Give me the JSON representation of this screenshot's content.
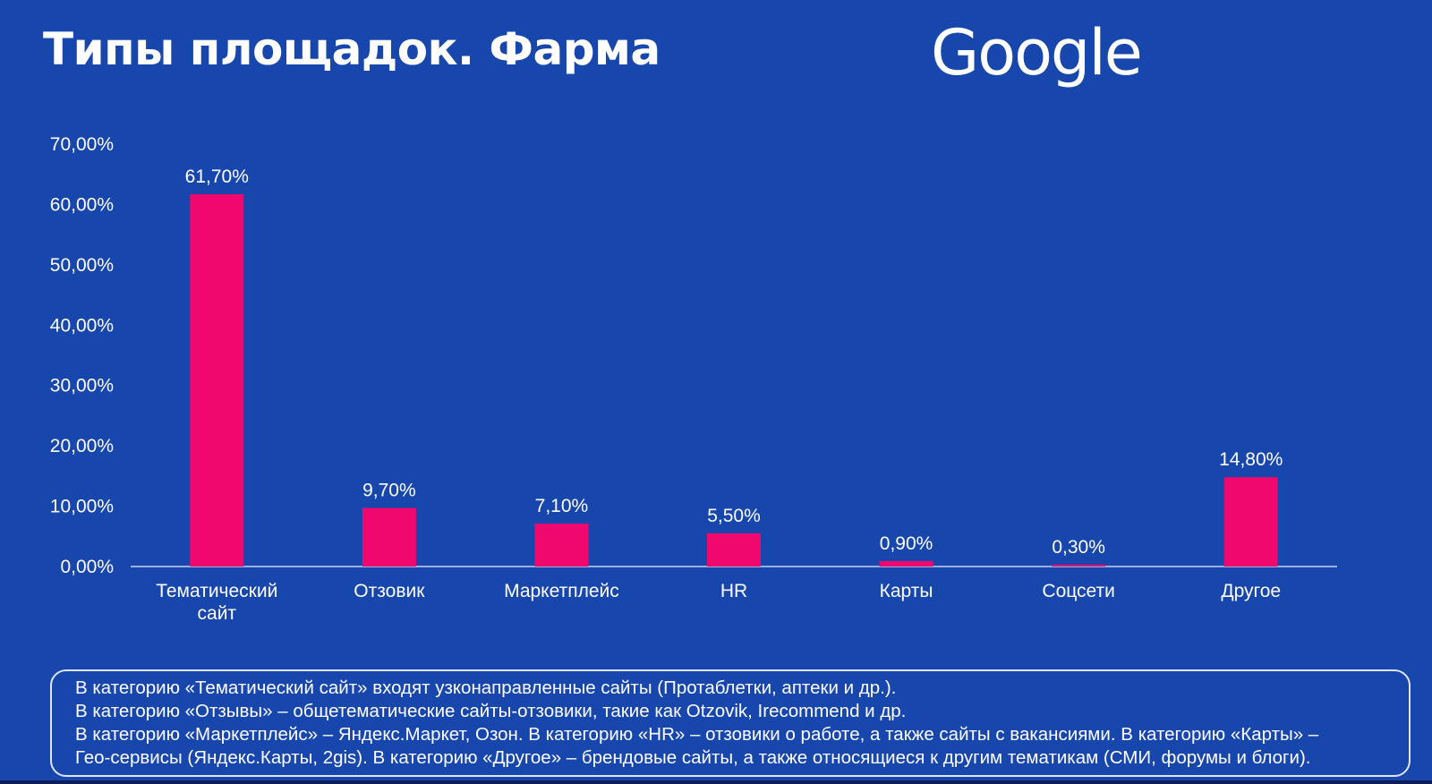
{
  "slide": {
    "title": "Типы площадок. Фарма",
    "logo_text": "Google",
    "logo_color": "#ffffff",
    "background_color": "#1746ad"
  },
  "chart_data": {
    "type": "bar",
    "categories": [
      [
        "Тематический",
        "сайт"
      ],
      [
        "Отзовик"
      ],
      [
        "Маркетплейс"
      ],
      [
        "HR"
      ],
      [
        "Карты"
      ],
      [
        "Соцсети"
      ],
      [
        "Другое"
      ]
    ],
    "values": [
      61.7,
      9.7,
      7.1,
      5.5,
      0.9,
      0.3,
      14.8
    ],
    "value_labels": [
      "61,70%",
      "9,70%",
      "7,10%",
      "5,50%",
      "0,90%",
      "0,30%",
      "14,80%"
    ],
    "y_ticks": [
      0,
      10,
      20,
      30,
      40,
      50,
      60,
      70
    ],
    "y_tick_labels": [
      "0,00%",
      "10,00%",
      "20,00%",
      "30,00%",
      "40,00%",
      "50,00%",
      "60,00%",
      "70,00%"
    ],
    "ylim": [
      0,
      70
    ],
    "grid": false,
    "bar_color": "#f0086e"
  },
  "note": {
    "lines": [
      "В категорию «Тематический сайт» входят узконаправленные сайты (Протаблетки, аптеки и др.).",
      "В категорию «Отзывы» – общетематические сайты-отзовики, такие как Otzovik, Irecommend и др.",
      "В категорию «Маркетплейс» – Яндекс.Маркет, Озон. В категорию «HR» – отзовики о работе, а также сайты с вакансиями. В категорию «Карты» –",
      "Гео-сервисы (Яндекс.Карты, 2gis). В категорию «Другое» – брендовые сайты, а также относящиеся к другим тематикам (СМИ, форумы и блоги)."
    ]
  }
}
